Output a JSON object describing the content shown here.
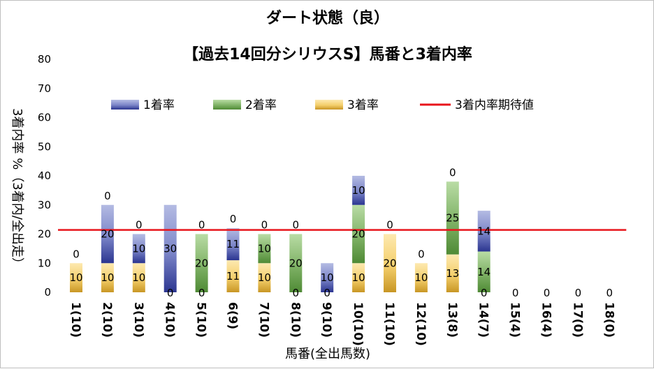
{
  "colors": {
    "s1_light": "#b4bbe3",
    "s1_mid": "#7b85c8",
    "s1_dark": "#2b3590",
    "s2_light": "#b9dca5",
    "s2_mid": "#7fb266",
    "s2_dark": "#4f8a35",
    "s3_light": "#fde9b0",
    "s3_mid": "#f4cf6c",
    "s3_dark": "#c89624",
    "expected_line": "#e8141b",
    "grid": "#d9d9d9"
  },
  "chart_data": {
    "type": "bar",
    "stacked": true,
    "title": "ダート状態（良）",
    "subtitle": "【過去14回分シリウスS】馬番と3着内率",
    "xlabel": "馬番(全出馬数)",
    "ylabel": "3着内率 %（3着内/全出走）",
    "ylim": [
      0,
      80
    ],
    "yticks": [
      "0",
      "10",
      "20",
      "30",
      "40",
      "50",
      "60",
      "70",
      "80"
    ],
    "grid": false,
    "legend_position": "top",
    "categories": [
      "1(10)",
      "2(10)",
      "3(10)",
      "4(10)",
      "5(10)",
      "6(9)",
      "7(10)",
      "8(10)",
      "9(10)",
      "10(10)",
      "11(10)",
      "12(10)",
      "13(8)",
      "14(7)",
      "15(4)",
      "16(4)",
      "17(0)",
      "18(0)"
    ],
    "series": [
      {
        "name": "1着率",
        "values": [
          0,
          20,
          10,
          30,
          0,
          11,
          0,
          0,
          10,
          10,
          0,
          0,
          0,
          14,
          0,
          0,
          0,
          0
        ]
      },
      {
        "name": "2着率",
        "values": [
          0,
          0,
          0,
          0,
          20,
          0,
          10,
          20,
          0,
          20,
          0,
          0,
          25,
          14,
          0,
          0,
          0,
          0
        ]
      },
      {
        "name": "3着率",
        "values": [
          10,
          10,
          10,
          0,
          0,
          11,
          10,
          0,
          0,
          10,
          20,
          10,
          13,
          0,
          0,
          0,
          0,
          0
        ]
      }
    ],
    "data_labels": {
      "s1": [
        "",
        "20",
        "10",
        "30",
        "",
        "11",
        "",
        "",
        "10",
        "10",
        "",
        "",
        "",
        "14",
        "",
        "",
        "",
        ""
      ],
      "s2": [
        "",
        "",
        "",
        "",
        "20",
        "",
        "10",
        "20",
        "",
        "20",
        "",
        "",
        "25",
        "14",
        "",
        "",
        "",
        ""
      ],
      "s3": [
        "10",
        "10",
        "10",
        "",
        "",
        "11",
        "10",
        "",
        "",
        "10",
        "20",
        "10",
        "13",
        "",
        "",
        "",
        "",
        ""
      ],
      "extra_zero": [
        [
          "0",
          0
        ],
        [
          "0",
          1
        ],
        [
          "0",
          2
        ],
        [
          "0",
          3
        ],
        [
          "0",
          4
        ],
        [
          "0",
          5
        ],
        [
          "0",
          6
        ],
        [
          "0",
          7
        ],
        [
          "0",
          8
        ],
        [
          "0",
          10
        ],
        [
          "0",
          11
        ],
        [
          "0",
          12
        ],
        [
          "0",
          13
        ],
        [
          "0",
          14
        ],
        [
          "0",
          15
        ],
        [
          "0",
          16
        ],
        [
          "0",
          17
        ]
      ]
    },
    "zero_label_values": {
      "above": [
        "0",
        "0",
        "0",
        "",
        "0",
        "0",
        "0",
        "0",
        "",
        "",
        "0",
        "0",
        "0",
        "",
        "",
        "",
        "",
        ""
      ],
      "bottom": [
        "",
        "",
        "",
        "0",
        "0",
        "",
        "",
        "0",
        "0",
        "",
        "",
        "",
        "",
        "0",
        "0",
        "0",
        "0",
        "0"
      ]
    },
    "expected_line": {
      "name": "3着内率期待値",
      "value": 21.4
    }
  }
}
